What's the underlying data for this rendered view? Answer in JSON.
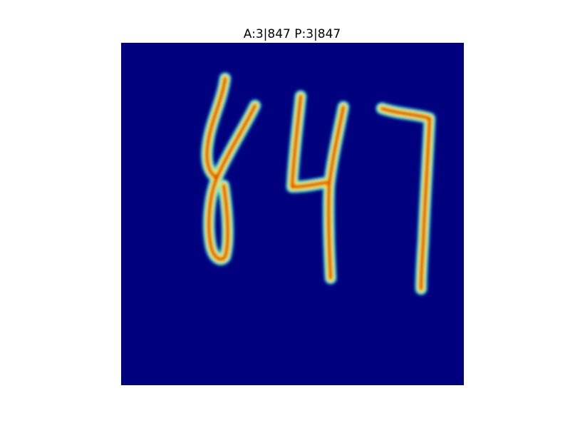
{
  "title": "A:3|847 P:3|847"
}
